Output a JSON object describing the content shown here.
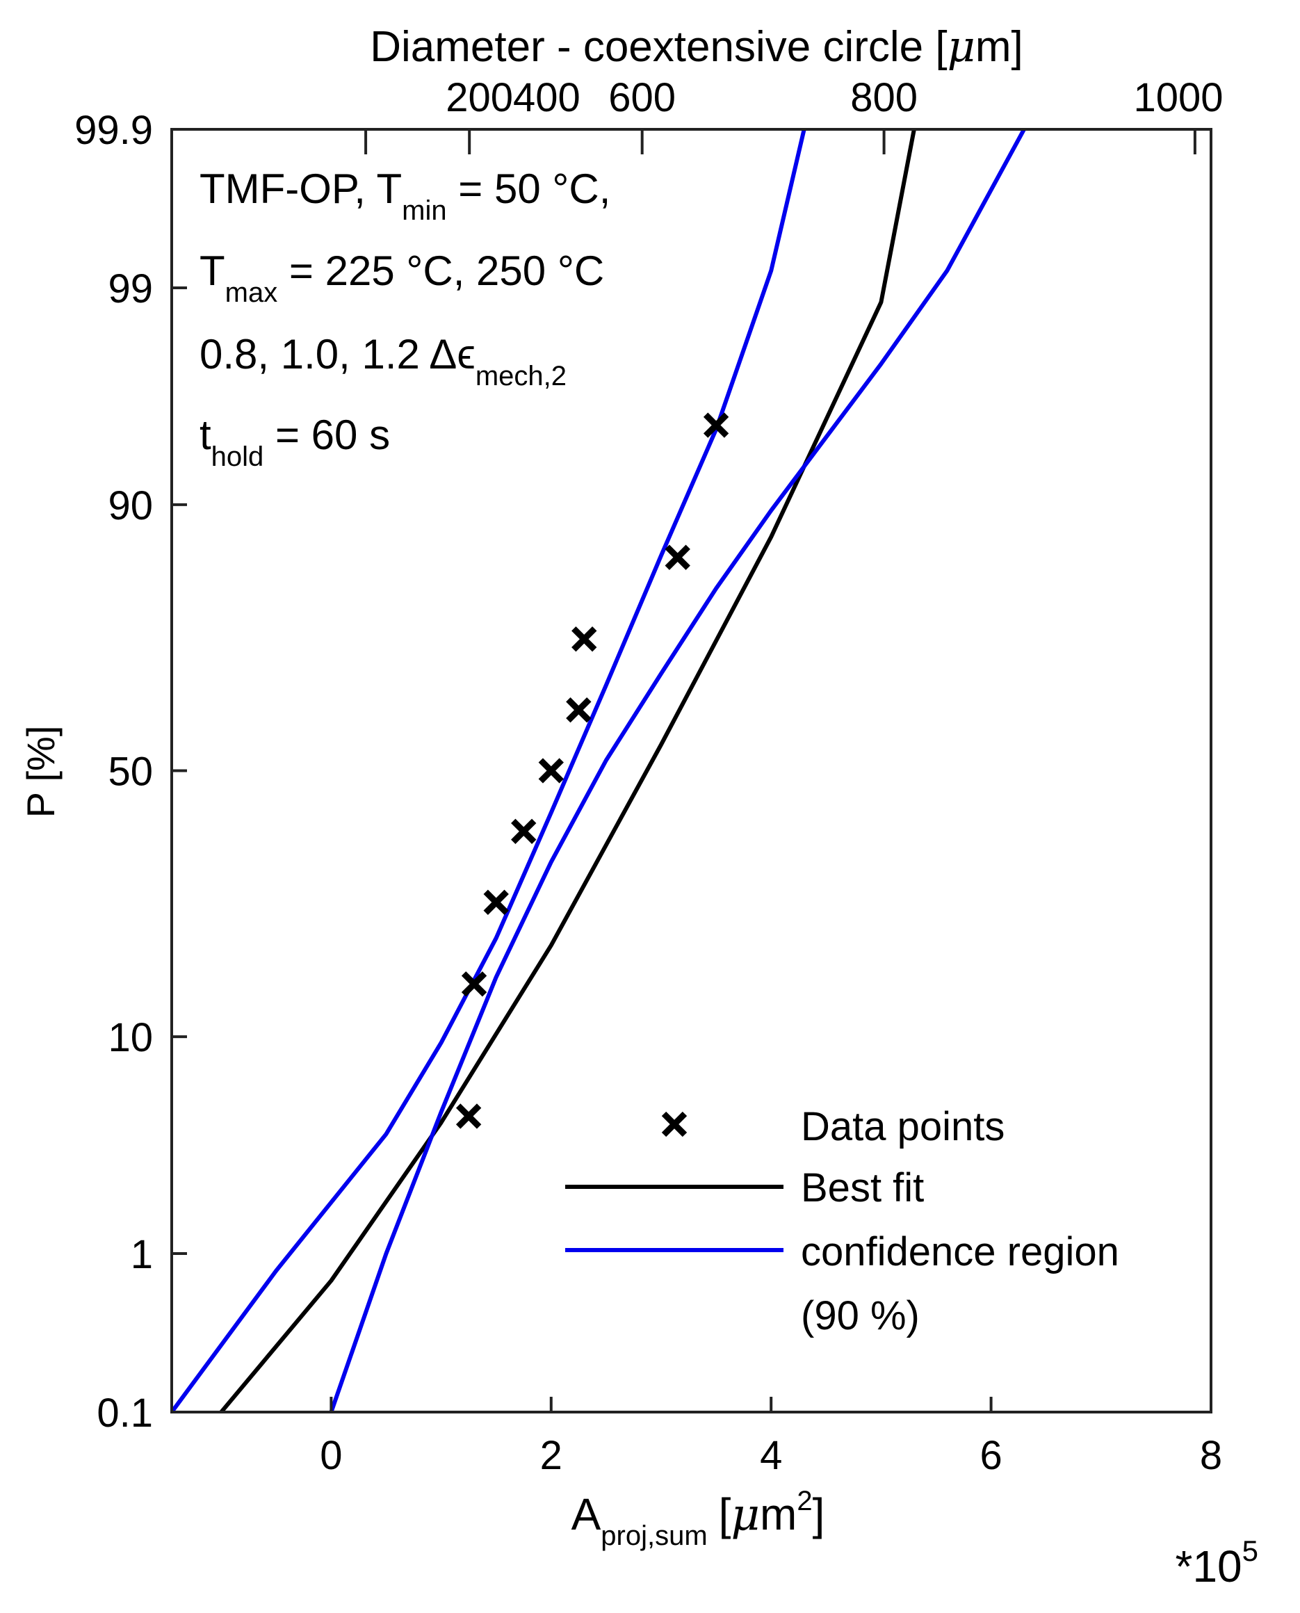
{
  "chart_data": {
    "type": "scatter",
    "title": "",
    "xlabel": "A",
    "xlabel_sub": "proj,sum",
    "xlabel_unit_open": "[",
    "xlabel_unit_mu": "μ",
    "xlabel_unit_base": "m",
    "xlabel_unit_exp": "2",
    "xlabel_unit_close": "]",
    "x_multiplier_base": "*10",
    "x_multiplier_exp": "5",
    "ylabel": "P [%]",
    "xlim": [
      -1.45,
      8.0
    ],
    "x_ticks": [
      0,
      2,
      4,
      6,
      8
    ],
    "x_tick_labels": [
      "0",
      "2",
      "4",
      "6",
      "8"
    ],
    "y_scale": "normal-probability",
    "ylim": [
      0.1,
      99.9
    ],
    "y_ticks": [
      0.1,
      1,
      10,
      50,
      90,
      99,
      99.9
    ],
    "y_tick_labels": [
      "0.1",
      "1",
      "10",
      "50",
      "90",
      "99",
      "99.9"
    ],
    "top_axis": {
      "label_pre": "Diameter - coextensive circle [",
      "label_mu": "μ",
      "label_post": "m]",
      "ticks": [
        200,
        400,
        600,
        800,
        1000
      ],
      "tick_labels": [
        "200",
        "400",
        "600",
        "800",
        "1000"
      ],
      "tick_label_text": "200400"
    },
    "annotation": {
      "line1_a": "TMF-OP, T",
      "line1_sub": "min",
      "line1_b": " = 50 °C,",
      "line2_a": "T",
      "line2_sub": "max",
      "line2_b": " = 225 °C, 250 °C",
      "line3_a": "0.8, 1.0, 1.2 Δϵ",
      "line3_sub": "mech,2",
      "line4_a": "t",
      "line4_sub": "hold",
      "line4_b": " = 60 s"
    },
    "series": [
      {
        "name": "Data points",
        "kind": "scatter",
        "marker": "x",
        "color": "#000000",
        "x": [
          1.25,
          1.3,
          1.5,
          1.75,
          2.0,
          2.25,
          2.3,
          3.15,
          3.5
        ],
        "p": [
          4.8,
          15.2,
          26.3,
          38.5,
          50.0,
          61.5,
          73.7,
          84.8,
          95.2
        ]
      },
      {
        "name": "Best fit",
        "kind": "line",
        "color": "#000000",
        "x": [
          -1.0,
          0.0,
          1.0,
          2.0,
          3.0,
          4.0,
          5.0,
          5.3
        ],
        "p": [
          0.1,
          0.7,
          4.5,
          20.0,
          55.0,
          87.0,
          98.8,
          99.9
        ]
      },
      {
        "name": "confidence region",
        "kind": "line",
        "color": "#0000ee",
        "x": [
          -1.45,
          -0.5,
          0.5,
          1.0,
          1.5,
          2.0,
          2.5,
          3.0,
          3.5,
          4.0,
          4.3
        ],
        "p": [
          0.1,
          0.8,
          4.0,
          9.5,
          21.0,
          42.0,
          66.0,
          85.0,
          95.0,
          99.2,
          99.9
        ]
      },
      {
        "name": "confidence region upper",
        "kind": "line",
        "color": "#0000ee",
        "x": [
          0.0,
          0.5,
          1.0,
          1.5,
          2.0,
          2.5,
          3.0,
          3.5,
          4.0,
          5.0,
          5.6,
          6.3
        ],
        "p": [
          0.1,
          1.0,
          5.0,
          16.0,
          33.0,
          52.0,
          68.0,
          81.0,
          89.5,
          97.5,
          99.2,
          99.9
        ]
      }
    ],
    "legend": {
      "position": "bottom-right",
      "entries": [
        "Data points",
        "Best fit",
        "confidence region",
        "(90 %)"
      ]
    }
  }
}
